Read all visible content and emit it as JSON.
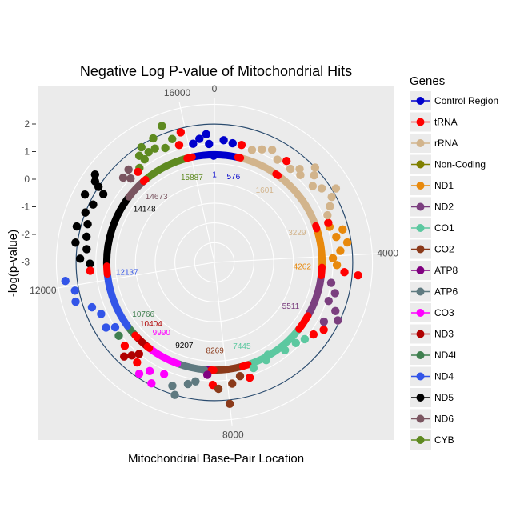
{
  "chart_data": {
    "type": "scatter",
    "coordinate_system": "polar",
    "title": "Negative Log P-value of Mitochondrial Hits",
    "xlabel": "Mitochondrial Base-Pair Location",
    "ylabel": "-log(p-value)",
    "x_range": [
      0,
      16569
    ],
    "x_ticks": [
      {
        "value": 0,
        "label": "0"
      },
      {
        "value": 4000,
        "label": "4000"
      },
      {
        "value": 8000,
        "label": "8000"
      },
      {
        "value": 12000,
        "label": "12000"
      },
      {
        "value": 16000,
        "label": "16000"
      }
    ],
    "y_range": [
      -6,
      2.3
    ],
    "y_ticks": [
      2,
      1,
      0,
      -1,
      -2,
      -3
    ],
    "y_tick_labels": [
      "2",
      "1",
      "0",
      "-1",
      "-2",
      "-3"
    ],
    "reference_circle_y": 1.0,
    "grid": true,
    "legend_position": "right",
    "legend": {
      "title": "Genes",
      "entries": [
        {
          "name": "Control Region",
          "color": "#0000CC"
        },
        {
          "name": "tRNA",
          "color": "#FF0000"
        },
        {
          "name": "rRNA",
          "color": "#D2B48C"
        },
        {
          "name": "Non-Coding",
          "color": "#808000"
        },
        {
          "name": "ND1",
          "color": "#E8890C"
        },
        {
          "name": "ND2",
          "color": "#7B3F7F"
        },
        {
          "name": "CO1",
          "color": "#5CC8A0"
        },
        {
          "name": "CO2",
          "color": "#8B3A1A"
        },
        {
          "name": "ATP8",
          "color": "#800080"
        },
        {
          "name": "ATP6",
          "color": "#5F7A80"
        },
        {
          "name": "CO3",
          "color": "#FF00FF"
        },
        {
          "name": "ND3",
          "color": "#B00000"
        },
        {
          "name": "ND4L",
          "color": "#3F7F4F"
        },
        {
          "name": "ND4",
          "color": "#3355E8"
        },
        {
          "name": "ND5",
          "color": "#000000"
        },
        {
          "name": "ND6",
          "color": "#7A5560"
        },
        {
          "name": "CYB",
          "color": "#5E8A20"
        }
      ]
    },
    "gene_start_labels": [
      {
        "pos": 1,
        "label": "1",
        "color": "#0000CC"
      },
      {
        "pos": 576,
        "label": "576",
        "color": "#0000CC"
      },
      {
        "pos": 1601,
        "label": "1601",
        "color": "#D2B48C"
      },
      {
        "pos": 3229,
        "label": "3229",
        "color": "#D2B48C"
      },
      {
        "pos": 4262,
        "label": "4262",
        "color": "#E8890C"
      },
      {
        "pos": 5511,
        "label": "5511",
        "color": "#7B3F7F"
      },
      {
        "pos": 7445,
        "label": "7445",
        "color": "#5CC8A0"
      },
      {
        "pos": 8269,
        "label": "8269",
        "color": "#8B3A1A"
      },
      {
        "pos": 9207,
        "label": "9207",
        "color": "#000000"
      },
      {
        "pos": 9990,
        "label": "9990",
        "color": "#FF00FF"
      },
      {
        "pos": 10404,
        "label": "10404",
        "color": "#B00000"
      },
      {
        "pos": 10766,
        "label": "10766",
        "color": "#3F7F4F"
      },
      {
        "pos": 12137,
        "label": "12137",
        "color": "#3355E8"
      },
      {
        "pos": 14148,
        "label": "14148",
        "color": "#000000"
      },
      {
        "pos": 14673,
        "label": "14673",
        "color": "#7A5560"
      },
      {
        "pos": 15887,
        "label": "15887",
        "color": "#5E8A20"
      }
    ],
    "gene_segments": [
      {
        "gene": "Control Region",
        "start": 16024,
        "end": 16569,
        "color": "#0000CC"
      },
      {
        "gene": "Control Region",
        "start": 1,
        "end": 576,
        "color": "#0000CC"
      },
      {
        "gene": "rRNA",
        "start": 648,
        "end": 1601,
        "color": "#D2B48C"
      },
      {
        "gene": "rRNA",
        "start": 1671,
        "end": 3229,
        "color": "#D2B48C"
      },
      {
        "gene": "ND1",
        "start": 3307,
        "end": 4262,
        "color": "#E8890C"
      },
      {
        "gene": "ND2",
        "start": 4470,
        "end": 5511,
        "color": "#7B3F7F"
      },
      {
        "gene": "CO1",
        "start": 5904,
        "end": 7445,
        "color": "#5CC8A0"
      },
      {
        "gene": "CO2",
        "start": 7586,
        "end": 8269,
        "color": "#8B3A1A"
      },
      {
        "gene": "ATP8",
        "start": 8366,
        "end": 8572,
        "color": "#800080"
      },
      {
        "gene": "ATP6",
        "start": 8527,
        "end": 9207,
        "color": "#5F7A80"
      },
      {
        "gene": "CO3",
        "start": 9207,
        "end": 9990,
        "color": "#FF00FF"
      },
      {
        "gene": "ND3",
        "start": 10059,
        "end": 10404,
        "color": "#B00000"
      },
      {
        "gene": "ND4L",
        "start": 10470,
        "end": 10766,
        "color": "#3F7F4F"
      },
      {
        "gene": "ND4",
        "start": 10760,
        "end": 12137,
        "color": "#3355E8"
      },
      {
        "gene": "ND5",
        "start": 12337,
        "end": 14148,
        "color": "#000000"
      },
      {
        "gene": "ND6",
        "start": 14149,
        "end": 14673,
        "color": "#7A5560"
      },
      {
        "gene": "CYB",
        "start": 14747,
        "end": 15887,
        "color": "#5E8A20"
      }
    ],
    "tRNA_segments": [
      {
        "start": 577,
        "end": 647
      },
      {
        "start": 1602,
        "end": 1670
      },
      {
        "start": 3230,
        "end": 3304
      },
      {
        "start": 4263,
        "end": 4469
      },
      {
        "start": 5512,
        "end": 5903
      },
      {
        "start": 7446,
        "end": 7585
      },
      {
        "start": 8295,
        "end": 8364
      },
      {
        "start": 9991,
        "end": 10058
      },
      {
        "start": 10405,
        "end": 10469
      },
      {
        "start": 12138,
        "end": 12336
      },
      {
        "start": 14674,
        "end": 14742
      },
      {
        "start": 15888,
        "end": 16023
      }
    ],
    "points": [
      {
        "x": 16400,
        "y": 0.5,
        "gene": "Control Region"
      },
      {
        "x": 15600,
        "y": 1.4,
        "gene": "CYB"
      },
      {
        "x": 15360,
        "y": 1.0,
        "gene": "CYB"
      },
      {
        "x": 15300,
        "y": 0.5,
        "gene": "CYB"
      },
      {
        "x": 15700,
        "y": 0.6,
        "gene": "CYB"
      },
      {
        "x": 15150,
        "y": 0.5,
        "gene": "CYB"
      },
      {
        "x": 15080,
        "y": 0.9,
        "gene": "CYB"
      },
      {
        "x": 15800,
        "y": 0.2,
        "gene": "tRNA"
      },
      {
        "x": 15900,
        "y": 0.8,
        "gene": "tRNA"
      },
      {
        "x": 15500,
        "y": 0.3,
        "gene": "CYB"
      },
      {
        "x": 15000,
        "y": 0.3,
        "gene": "CYB"
      },
      {
        "x": 14950,
        "y": 0.6,
        "gene": "CYB"
      },
      {
        "x": 14800,
        "y": 0.1,
        "gene": "CYB"
      },
      {
        "x": 14720,
        "y": 0.0,
        "gene": "tRNA"
      },
      {
        "x": 14600,
        "y": 0.4,
        "gene": "ND6"
      },
      {
        "x": 14500,
        "y": 0.0,
        "gene": "ND6"
      },
      {
        "x": 14400,
        "y": 0.3,
        "gene": "ND6"
      },
      {
        "x": 14100,
        "y": 1.5,
        "gene": "ND5"
      },
      {
        "x": 14000,
        "y": 1.3,
        "gene": "ND5"
      },
      {
        "x": 13950,
        "y": 1.0,
        "gene": "ND5"
      },
      {
        "x": 13880,
        "y": 0.6,
        "gene": "ND5"
      },
      {
        "x": 13700,
        "y": 1.4,
        "gene": "ND5"
      },
      {
        "x": 13600,
        "y": 0.8,
        "gene": "ND5"
      },
      {
        "x": 13400,
        "y": 1.0,
        "gene": "ND5"
      },
      {
        "x": 13200,
        "y": 0.7,
        "gene": "ND5"
      },
      {
        "x": 13100,
        "y": 1.2,
        "gene": "ND5"
      },
      {
        "x": 12950,
        "y": 0.6,
        "gene": "ND5"
      },
      {
        "x": 12800,
        "y": 1.1,
        "gene": "ND5"
      },
      {
        "x": 12700,
        "y": 0.5,
        "gene": "ND5"
      },
      {
        "x": 12500,
        "y": 0.8,
        "gene": "ND5"
      },
      {
        "x": 12400,
        "y": 0.3,
        "gene": "ND5"
      },
      {
        "x": 12250,
        "y": 0.3,
        "gene": "tRNA"
      },
      {
        "x": 12100,
        "y": 1.6,
        "gene": "ND4"
      },
      {
        "x": 11900,
        "y": 1.2,
        "gene": "ND4"
      },
      {
        "x": 11700,
        "y": 1.3,
        "gene": "ND4"
      },
      {
        "x": 11500,
        "y": 0.6,
        "gene": "ND4"
      },
      {
        "x": 11300,
        "y": 0.3,
        "gene": "ND4"
      },
      {
        "x": 11000,
        "y": 0.4,
        "gene": "ND4"
      },
      {
        "x": 10900,
        "y": 0.0,
        "gene": "ND4"
      },
      {
        "x": 10700,
        "y": 0.1,
        "gene": "ND4L"
      },
      {
        "x": 10450,
        "y": 0.2,
        "gene": "tRNA"
      },
      {
        "x": 10300,
        "y": 0.6,
        "gene": "ND3"
      },
      {
        "x": 10200,
        "y": 0.3,
        "gene": "ND3"
      },
      {
        "x": 10100,
        "y": 0.0,
        "gene": "ND3"
      },
      {
        "x": 10020,
        "y": 0.4,
        "gene": "tRNA"
      },
      {
        "x": 9850,
        "y": 0.8,
        "gene": "CO3"
      },
      {
        "x": 9700,
        "y": 0.4,
        "gene": "CO3"
      },
      {
        "x": 9550,
        "y": 0.9,
        "gene": "CO3"
      },
      {
        "x": 9400,
        "y": 0.2,
        "gene": "CO3"
      },
      {
        "x": 9150,
        "y": 0.6,
        "gene": "ATP6"
      },
      {
        "x": 9050,
        "y": 1.0,
        "gene": "ATP6"
      },
      {
        "x": 8850,
        "y": 0.3,
        "gene": "ATP6"
      },
      {
        "x": 8700,
        "y": 0.1,
        "gene": "ATP6"
      },
      {
        "x": 8450,
        "y": -0.3,
        "gene": "ATP8"
      },
      {
        "x": 8320,
        "y": 0.2,
        "gene": "tRNA"
      },
      {
        "x": 8200,
        "y": 0.4,
        "gene": "CO2"
      },
      {
        "x": 8000,
        "y": 1.2,
        "gene": "CO2"
      },
      {
        "x": 7900,
        "y": 0.2,
        "gene": "CO2"
      },
      {
        "x": 7700,
        "y": -0.1,
        "gene": "CO2"
      },
      {
        "x": 7500,
        "y": 0.1,
        "gene": "tRNA"
      },
      {
        "x": 7350,
        "y": -0.3,
        "gene": "CO1"
      },
      {
        "x": 7000,
        "y": -0.4,
        "gene": "CO1"
      },
      {
        "x": 6900,
        "y": -0.6,
        "gene": "CO1"
      },
      {
        "x": 6500,
        "y": -0.3,
        "gene": "CO1"
      },
      {
        "x": 6200,
        "y": -0.2,
        "gene": "CO1"
      },
      {
        "x": 6000,
        "y": 0.0,
        "gene": "CO1"
      },
      {
        "x": 5800,
        "y": 0.2,
        "gene": "tRNA"
      },
      {
        "x": 5600,
        "y": 0.5,
        "gene": "tRNA"
      },
      {
        "x": 5450,
        "y": 0.3,
        "gene": "ND2"
      },
      {
        "x": 5300,
        "y": 0.9,
        "gene": "ND2"
      },
      {
        "x": 5150,
        "y": 0.6,
        "gene": "ND2"
      },
      {
        "x": 5000,
        "y": 0.1,
        "gene": "ND2"
      },
      {
        "x": 4800,
        "y": 0.3,
        "gene": "ND2"
      },
      {
        "x": 4600,
        "y": 0.0,
        "gene": "ND2"
      },
      {
        "x": 4380,
        "y": 1.3,
        "gene": "tRNA"
      },
      {
        "x": 4340,
        "y": 0.6,
        "gene": "tRNA"
      },
      {
        "x": 4200,
        "y": 0.2,
        "gene": "ND1"
      },
      {
        "x": 4050,
        "y": 0.0,
        "gene": "ND1"
      },
      {
        "x": 3900,
        "y": 0.4,
        "gene": "ND1"
      },
      {
        "x": 3750,
        "y": 0.8,
        "gene": "ND1"
      },
      {
        "x": 3600,
        "y": 0.3,
        "gene": "ND1"
      },
      {
        "x": 3480,
        "y": 0.7,
        "gene": "ND1"
      },
      {
        "x": 3350,
        "y": 0.1,
        "gene": "ND1"
      },
      {
        "x": 3260,
        "y": 0.1,
        "gene": "tRNA"
      },
      {
        "x": 3100,
        "y": 0.2,
        "gene": "rRNA"
      },
      {
        "x": 2950,
        "y": 0.5,
        "gene": "rRNA"
      },
      {
        "x": 2800,
        "y": 0.8,
        "gene": "rRNA"
      },
      {
        "x": 2700,
        "y": 1.2,
        "gene": "rRNA"
      },
      {
        "x": 2550,
        "y": 0.6,
        "gene": "rRNA"
      },
      {
        "x": 2400,
        "y": 0.3,
        "gene": "rRNA"
      },
      {
        "x": 2250,
        "y": 0.7,
        "gene": "rRNA"
      },
      {
        "x": 2150,
        "y": 1.0,
        "gene": "rRNA"
      },
      {
        "x": 2050,
        "y": 0.2,
        "gene": "rRNA"
      },
      {
        "x": 1950,
        "y": 0.4,
        "gene": "rRNA"
      },
      {
        "x": 1800,
        "y": 0.1,
        "gene": "rRNA"
      },
      {
        "x": 1630,
        "y": 0.3,
        "gene": "tRNA"
      },
      {
        "x": 1450,
        "y": 0.1,
        "gene": "rRNA"
      },
      {
        "x": 1250,
        "y": 0.4,
        "gene": "rRNA"
      },
      {
        "x": 1050,
        "y": 0.2,
        "gene": "rRNA"
      },
      {
        "x": 850,
        "y": 0.0,
        "gene": "rRNA"
      },
      {
        "x": 600,
        "y": 0.1,
        "gene": "tRNA"
      },
      {
        "x": 400,
        "y": 0.1,
        "gene": "Control Region"
      },
      {
        "x": 200,
        "y": 0.2,
        "gene": "Control Region"
      },
      {
        "x": 16550,
        "y": -0.6,
        "gene": "Control Region"
      },
      {
        "x": 16450,
        "y": 0.0,
        "gene": "Control Region"
      },
      {
        "x": 16250,
        "y": 0.3,
        "gene": "Control Region"
      },
      {
        "x": 16100,
        "y": 0.1,
        "gene": "Control Region"
      }
    ]
  }
}
